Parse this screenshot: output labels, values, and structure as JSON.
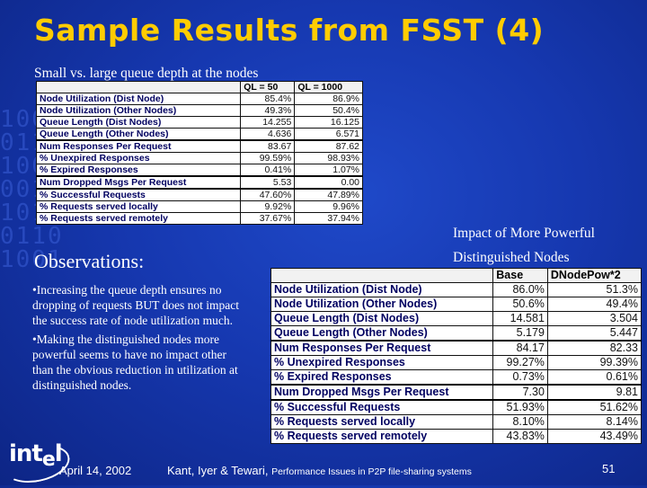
{
  "title": "Sample Results from FSST (4)",
  "subtitle": "Small vs. large queue depth at the nodes",
  "table1": {
    "columns": [
      "",
      "QL = 50",
      "QL = 1000"
    ],
    "rows": [
      [
        "Node Utilization (Dist Node)",
        "85.4%",
        "86.9%"
      ],
      [
        "Node Utilization (Other Nodes)",
        "49.3%",
        "50.4%"
      ],
      [
        "Queue Length (Dist Nodes)",
        "14.255",
        "16.125"
      ],
      [
        "Queue Length (Other Nodes)",
        "4.636",
        "6.571"
      ],
      [
        "Num Responses Per Request",
        "83.67",
        "87.62"
      ],
      [
        "% Unexpired Responses",
        "99.59%",
        "98.93%"
      ],
      [
        "% Expired Responses",
        "0.41%",
        "1.07%"
      ],
      [
        "Num Dropped Msgs Per Request",
        "5.53",
        "0.00"
      ],
      [
        "% Successful Requests",
        "47.60%",
        "47.89%"
      ],
      [
        "% Requests served locally",
        "9.92%",
        "9.96%"
      ],
      [
        "% Requests served remotely",
        "37.67%",
        "37.94%"
      ]
    ]
  },
  "impact_title_line1": "Impact of More Powerful",
  "impact_title_line2": "Distinguished Nodes",
  "table2": {
    "columns": [
      "",
      "Base",
      "DNodePow*2"
    ],
    "rows": [
      [
        "Node Utilization (Dist Node)",
        "86.0%",
        "51.3%"
      ],
      [
        "Node Utilization (Other Nodes)",
        "50.6%",
        "49.4%"
      ],
      [
        "Queue Length (Dist Nodes)",
        "14.581",
        "3.504"
      ],
      [
        "Queue Length (Other Nodes)",
        "5.179",
        "5.447"
      ],
      [
        "Num Responses Per Request",
        "84.17",
        "82.33"
      ],
      [
        "% Unexpired Responses",
        "99.27%",
        "99.39%"
      ],
      [
        "% Expired Responses",
        "0.73%",
        "0.61%"
      ],
      [
        "Num Dropped Msgs Per Request",
        "7.30",
        "9.81"
      ],
      [
        "% Successful Requests",
        "51.93%",
        "51.62%"
      ],
      [
        "% Requests served locally",
        "8.10%",
        "8.14%"
      ],
      [
        "% Requests served remotely",
        "43.83%",
        "43.49%"
      ]
    ]
  },
  "observations": {
    "heading": "Observations:",
    "bullets": [
      "•Increasing the queue depth ensures no dropping of requests BUT does not impact the success rate of node utilization  much.",
      "•Making the distinguished nodes more powerful seems to have no impact other than the obvious reduction in utilization at distinguished nodes."
    ]
  },
  "logo": {
    "text_main": "int",
    "text_e": "e",
    "text_l": "l"
  },
  "footer": {
    "date": "April 14, 2002",
    "credit_main": "Kant, Iyer & Tewari, ",
    "credit_small": "Performance Issues in P2P file-sharing systems",
    "page": "51"
  },
  "colors": {
    "title": "#ffcc00",
    "background": "#1638b0",
    "text": "#ffffff"
  }
}
